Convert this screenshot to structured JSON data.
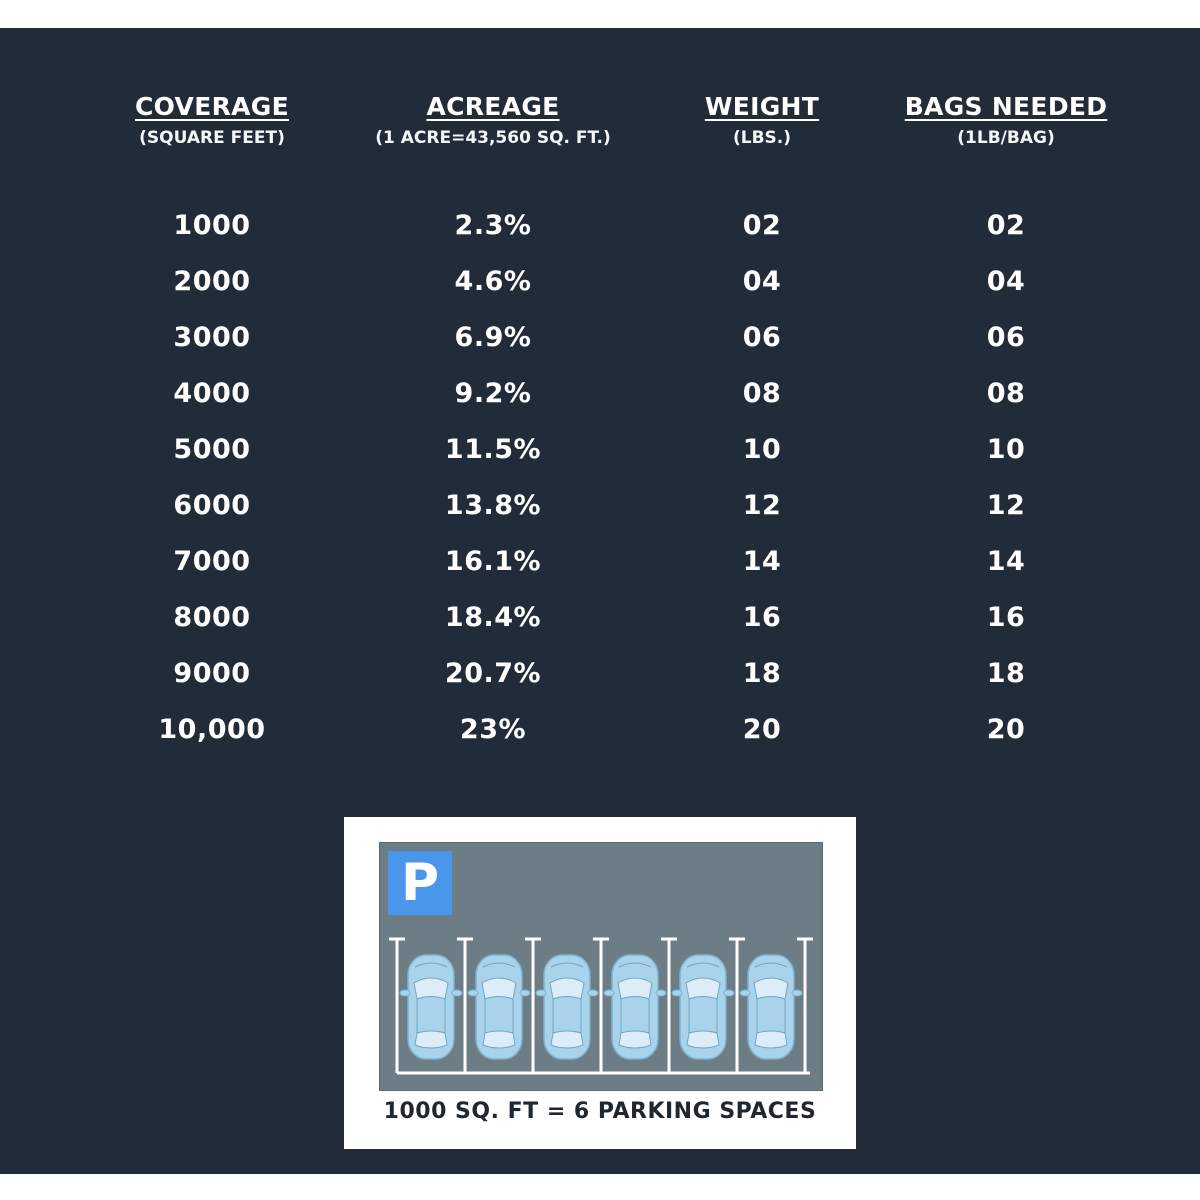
{
  "table": {
    "columns": [
      {
        "title": "COVERAGE",
        "subtitle": "(SQUARE FEET)"
      },
      {
        "title": "ACREAGE",
        "subtitle": "(1 ACRE=43,560 SQ. FT.)"
      },
      {
        "title": "WEIGHT",
        "subtitle": "(LBS.)"
      },
      {
        "title": "BAGS NEEDED",
        "subtitle": "(1LB/BAG)"
      }
    ],
    "coverage": [
      "1000",
      "2000",
      "3000",
      "4000",
      "5000",
      "6000",
      "7000",
      "8000",
      "9000",
      "10,000"
    ],
    "acreage": [
      "2.3%",
      "4.6%",
      "6.9%",
      "9.2%",
      "11.5%",
      "13.8%",
      "16.1%",
      "18.4%",
      "20.7%",
      "23%"
    ],
    "weight": [
      "02",
      "04",
      "06",
      "08",
      "10",
      "12",
      "14",
      "16",
      "18",
      "20"
    ],
    "bags": [
      "02",
      "04",
      "06",
      "08",
      "10",
      "12",
      "14",
      "16",
      "18",
      "20"
    ]
  },
  "illustration": {
    "sign_letter": "P",
    "caption": "1000 SQ. FT = 6 PARKING SPACES",
    "colors": {
      "background": "#222c39",
      "lot": "#6c7d86",
      "sign": "#4a96ea",
      "car": "#a9d3ea"
    },
    "icon": "parking-lot-icon",
    "cars": 6
  }
}
